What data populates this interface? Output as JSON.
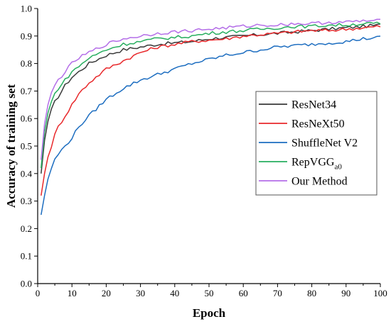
{
  "chart_data": {
    "type": "line",
    "title": "",
    "xlabel": "Epoch",
    "ylabel": "Accuracy of training set",
    "xlim": [
      0,
      100
    ],
    "ylim": [
      0.0,
      1.0
    ],
    "xticks": [
      0,
      10,
      20,
      30,
      40,
      50,
      60,
      70,
      80,
      90,
      100
    ],
    "yticks": [
      0.0,
      0.1,
      0.2,
      0.3,
      0.4,
      0.5,
      0.6,
      0.7,
      0.8,
      0.9,
      1.0
    ],
    "grid": false,
    "legend_position": "center-right",
    "x": [
      1,
      2,
      3,
      4,
      5,
      6,
      8,
      10,
      12,
      15,
      20,
      25,
      30,
      35,
      40,
      45,
      50,
      55,
      60,
      65,
      70,
      75,
      80,
      85,
      90,
      95,
      100
    ],
    "series": [
      {
        "name": "ResNet34",
        "label_main": "ResNet34",
        "label_sub": "",
        "color": "#3a3a3a",
        "values": [
          0.4,
          0.52,
          0.59,
          0.63,
          0.66,
          0.68,
          0.72,
          0.75,
          0.77,
          0.8,
          0.83,
          0.85,
          0.86,
          0.87,
          0.875,
          0.88,
          0.89,
          0.895,
          0.9,
          0.905,
          0.91,
          0.915,
          0.92,
          0.925,
          0.93,
          0.935,
          0.94
        ]
      },
      {
        "name": "ResNeXt50",
        "label_main": "ResNeXt50",
        "label_sub": "",
        "color": "#e8282b",
        "values": [
          0.32,
          0.4,
          0.46,
          0.5,
          0.54,
          0.57,
          0.61,
          0.65,
          0.69,
          0.73,
          0.78,
          0.81,
          0.84,
          0.86,
          0.87,
          0.88,
          0.885,
          0.89,
          0.9,
          0.905,
          0.91,
          0.915,
          0.92,
          0.92,
          0.925,
          0.93,
          0.935
        ]
      },
      {
        "name": "ShuffleNet V2",
        "label_main": "ShuffleNet V2",
        "label_sub": "",
        "color": "#1c6dc0",
        "values": [
          0.25,
          0.32,
          0.38,
          0.42,
          0.45,
          0.47,
          0.5,
          0.53,
          0.57,
          0.61,
          0.67,
          0.71,
          0.74,
          0.76,
          0.78,
          0.8,
          0.815,
          0.83,
          0.84,
          0.85,
          0.86,
          0.865,
          0.87,
          0.875,
          0.88,
          0.89,
          0.895
        ]
      },
      {
        "name": "RepVGGa0",
        "label_main": "RepVGG",
        "label_sub": "a0",
        "color": "#27ae5f",
        "values": [
          0.42,
          0.55,
          0.62,
          0.66,
          0.69,
          0.71,
          0.74,
          0.77,
          0.79,
          0.82,
          0.85,
          0.87,
          0.88,
          0.89,
          0.895,
          0.9,
          0.91,
          0.915,
          0.92,
          0.925,
          0.93,
          0.935,
          0.935,
          0.94,
          0.94,
          0.945,
          0.945
        ]
      },
      {
        "name": "Our Method",
        "label_main": "Our Method",
        "label_sub": "",
        "color": "#b46ee8",
        "values": [
          0.45,
          0.58,
          0.65,
          0.69,
          0.72,
          0.74,
          0.77,
          0.8,
          0.82,
          0.84,
          0.87,
          0.89,
          0.9,
          0.91,
          0.915,
          0.92,
          0.925,
          0.93,
          0.935,
          0.94,
          0.94,
          0.945,
          0.945,
          0.95,
          0.95,
          0.955,
          0.955
        ]
      }
    ]
  }
}
